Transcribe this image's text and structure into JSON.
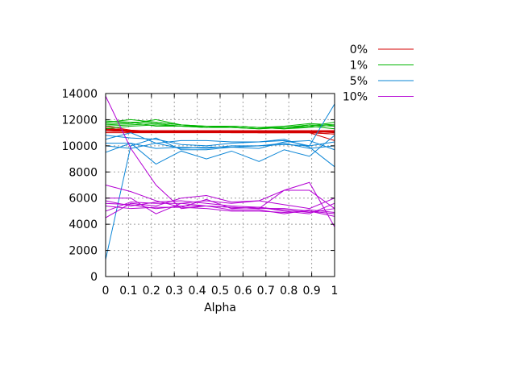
{
  "chart_data": {
    "type": "line",
    "title": "",
    "xlabel": "Alpha",
    "ylabel": "",
    "xlim": [
      0,
      1
    ],
    "ylim": [
      0,
      14000
    ],
    "xticks": [
      0,
      0.1,
      0.2,
      0.3,
      0.4,
      0.5,
      0.6,
      0.7,
      0.8,
      0.9,
      1
    ],
    "xtick_labels": [
      "0",
      "0.1",
      "0.2",
      "0.3",
      "0.4",
      "0.5",
      "0.6",
      "0.7",
      "0.8",
      "0.9",
      "1"
    ],
    "yticks": [
      0,
      2000,
      4000,
      6000,
      8000,
      10000,
      12000,
      14000
    ],
    "ytick_labels": [
      "0",
      "2000",
      "4000",
      "6000",
      "8000",
      "10000",
      "12000",
      "14000"
    ],
    "grid": true,
    "legend_position": "top-right-outside",
    "x": [
      0,
      0.11,
      0.22,
      0.33,
      0.44,
      0.55,
      0.67,
      0.78,
      0.89,
      1
    ],
    "series": [
      {
        "name": "0%",
        "color": "#d40000",
        "lines": [
          [
            11300,
            11100,
            11100,
            11100,
            11100,
            11100,
            11100,
            11100,
            11100,
            11100
          ],
          [
            11200,
            11100,
            11100,
            11100,
            11100,
            11000,
            11000,
            11000,
            11000,
            10900
          ],
          [
            11100,
            11100,
            11000,
            11000,
            11000,
            11000,
            11000,
            11000,
            11000,
            10400
          ],
          [
            11000,
            11000,
            11000,
            11100,
            11100,
            11100,
            11000,
            11000,
            11100,
            11000
          ],
          [
            11500,
            11200,
            11100,
            11100,
            11100,
            11100,
            11000,
            11000,
            11000,
            10900
          ]
        ]
      },
      {
        "name": "1%",
        "color": "#00b400",
        "lines": [
          [
            11900,
            11800,
            11800,
            11600,
            11500,
            11500,
            11400,
            11400,
            11600,
            11500
          ],
          [
            11800,
            12000,
            11800,
            11600,
            11500,
            11500,
            11400,
            11500,
            11700,
            11600
          ],
          [
            11600,
            11700,
            12000,
            11600,
            11400,
            11400,
            11300,
            11400,
            11500,
            11800
          ],
          [
            11300,
            11500,
            11600,
            11500,
            11400,
            11500,
            11400,
            11300,
            11500,
            11300
          ],
          [
            11700,
            11800,
            11500,
            11500,
            11500,
            11400,
            11300,
            11400,
            11600,
            11500
          ],
          [
            11500,
            11600,
            11700,
            11500,
            11400,
            11500,
            11400,
            11300,
            11400,
            11600
          ]
        ]
      },
      {
        "name": "5%",
        "color": "#0a85d6",
        "lines": [
          [
            10200,
            10200,
            9800,
            9900,
            9800,
            10000,
            10000,
            10200,
            9800,
            10000
          ],
          [
            10500,
            11000,
            10200,
            10400,
            10400,
            10300,
            10300,
            10400,
            10000,
            13200
          ],
          [
            9500,
            10200,
            8600,
            9600,
            9000,
            9600,
            8800,
            9700,
            9200,
            10800
          ],
          [
            10800,
            10600,
            10500,
            10100,
            10000,
            10200,
            10300,
            10500,
            9900,
            8400
          ],
          [
            1300,
            10000,
            10600,
            9700,
            9700,
            9900,
            9800,
            10300,
            10400,
            9700
          ],
          [
            10000,
            9800,
            10200,
            9800,
            9900,
            9900,
            10000,
            10100,
            10000,
            10300
          ]
        ]
      },
      {
        "name": "10%",
        "color": "#b400d4",
        "lines": [
          [
            13800,
            9800,
            7000,
            5200,
            5400,
            5300,
            5200,
            6600,
            7200,
            3800
          ],
          [
            6000,
            6000,
            4800,
            5600,
            5800,
            5600,
            5800,
            6600,
            6600,
            5200
          ],
          [
            7000,
            6500,
            5800,
            5300,
            5900,
            5200,
            5300,
            5000,
            4800,
            5600
          ],
          [
            4500,
            5600,
            5400,
            6000,
            6200,
            5700,
            5800,
            5500,
            5200,
            6000
          ],
          [
            5600,
            5500,
            5200,
            5400,
            5400,
            5300,
            5200,
            5200,
            5000,
            4600
          ],
          [
            5000,
            5700,
            5600,
            5600,
            5400,
            5100,
            5100,
            4800,
            5100,
            4900
          ],
          [
            5800,
            5400,
            5700,
            5800,
            5600,
            5400,
            5300,
            5100,
            4900,
            5200
          ],
          [
            5400,
            5200,
            5300,
            5300,
            5200,
            5000,
            5000,
            4900,
            5000,
            4800
          ]
        ]
      }
    ]
  }
}
